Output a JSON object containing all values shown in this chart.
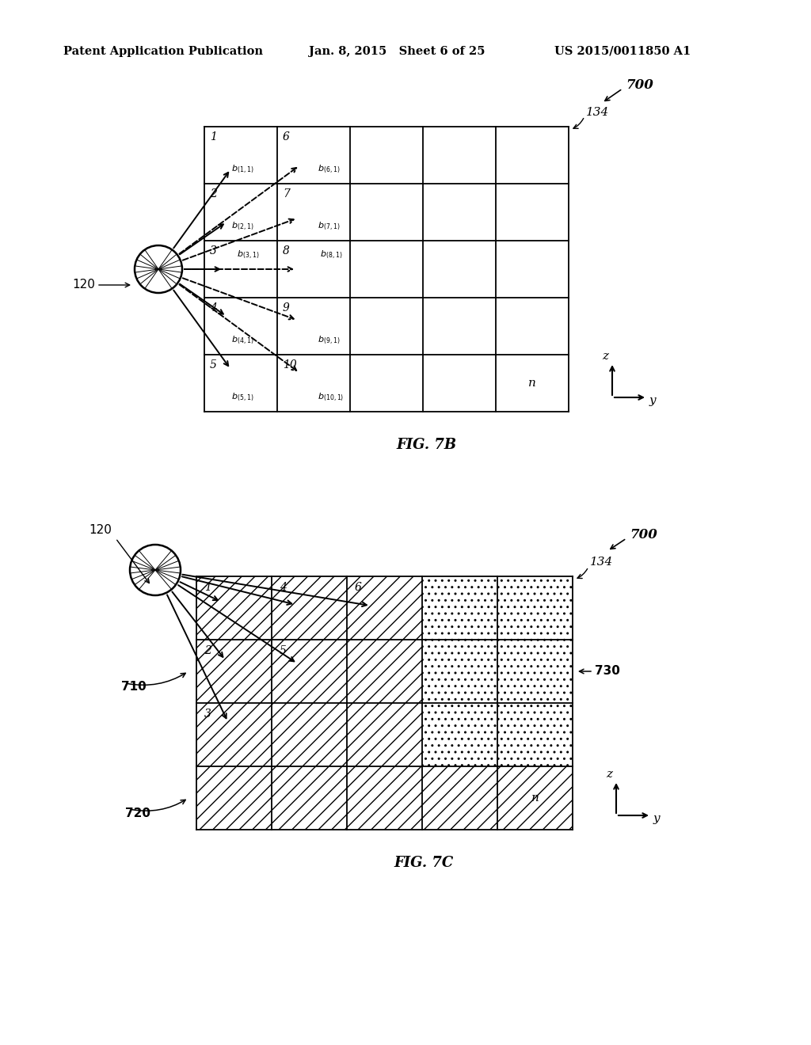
{
  "header_left": "Patent Application Publication",
  "header_center": "Jan. 8, 2015   Sheet 6 of 25",
  "header_right": "US 2015/0011850 A1",
  "fig7b_label": "FIG. 7B",
  "fig7c_label": "FIG. 7C",
  "background_color": "#ffffff"
}
